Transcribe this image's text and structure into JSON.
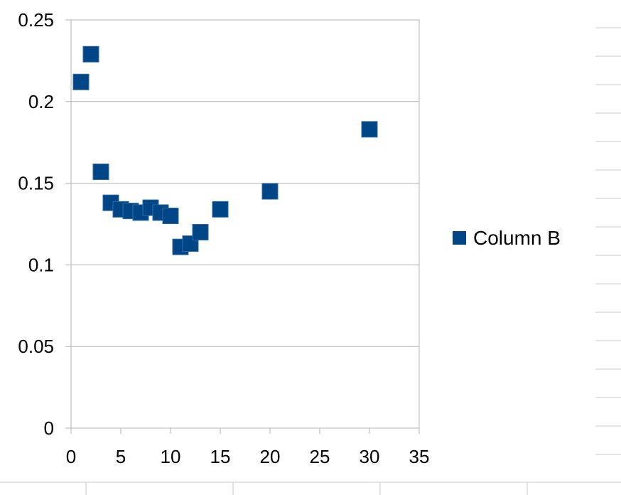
{
  "chart_data": {
    "type": "scatter",
    "title": "",
    "xlabel": "",
    "ylabel": "",
    "xlim": [
      0,
      35
    ],
    "ylim": [
      0,
      0.25
    ],
    "x_ticks": [
      0,
      5,
      10,
      15,
      20,
      25,
      30,
      35
    ],
    "y_ticks": [
      0,
      0.05,
      0.1,
      0.15,
      0.2,
      0.25
    ],
    "x_tick_labels": [
      "0",
      "5",
      "10",
      "15",
      "20",
      "25",
      "30",
      "35"
    ],
    "y_tick_labels": [
      "0",
      "0.05",
      "0.1",
      "0.15",
      "0.2",
      "0.25"
    ],
    "grid": "horizontal",
    "legend_position": "right",
    "marker": "square",
    "series": [
      {
        "name": "Column B",
        "color": "#004586",
        "x": [
          1,
          2,
          3,
          4,
          5,
          6,
          7,
          8,
          9,
          10,
          11,
          12,
          13,
          15,
          20,
          30
        ],
        "y": [
          0.212,
          0.229,
          0.157,
          0.138,
          0.134,
          0.133,
          0.132,
          0.135,
          0.132,
          0.13,
          0.111,
          0.113,
          0.12,
          0.134,
          0.145,
          0.183
        ]
      }
    ]
  }
}
